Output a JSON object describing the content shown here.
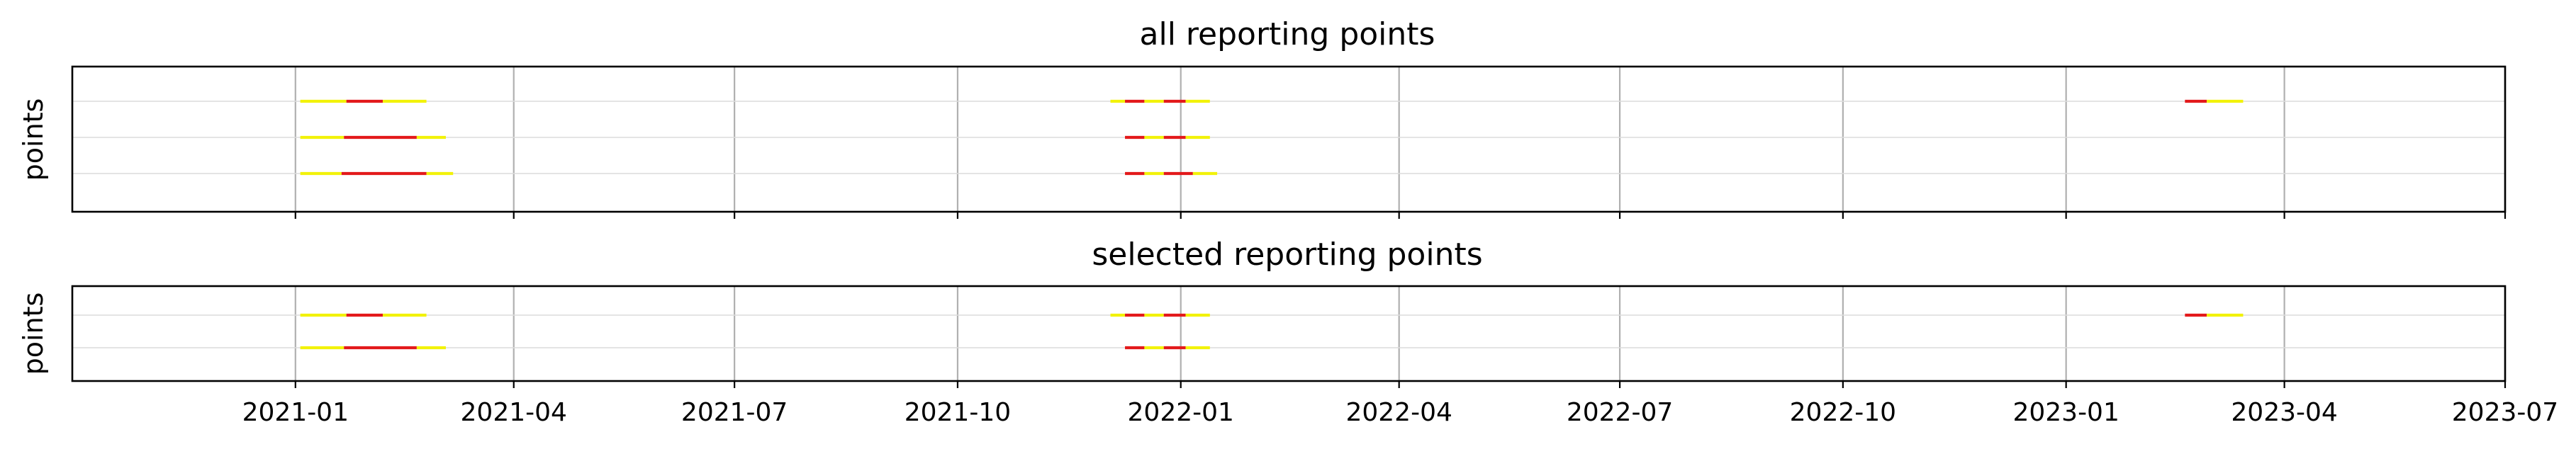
{
  "chart_data": [
    {
      "type": "timeline",
      "title": "all reporting points",
      "ylabel": "points",
      "xlim": [
        "2020-10-01",
        "2023-07-01"
      ],
      "xticks": [
        "2021-01",
        "2021-04",
        "2021-07",
        "2021-10",
        "2022-01",
        "2022-04",
        "2022-07",
        "2022-10",
        "2023-01",
        "2023-04",
        "2023-07"
      ],
      "grid": true,
      "rows": [
        {
          "segments": [
            {
              "start": "2021-01-03",
              "end": "2021-01-22",
              "color": "yellow"
            },
            {
              "start": "2021-01-22",
              "end": "2021-02-06",
              "color": "red"
            },
            {
              "start": "2021-02-06",
              "end": "2021-02-24",
              "color": "yellow"
            },
            {
              "start": "2021-12-03",
              "end": "2021-12-09",
              "color": "yellow"
            },
            {
              "start": "2021-12-09",
              "end": "2021-12-17",
              "color": "red"
            },
            {
              "start": "2021-12-17",
              "end": "2021-12-25",
              "color": "yellow"
            },
            {
              "start": "2021-12-25",
              "end": "2022-01-03",
              "color": "red"
            },
            {
              "start": "2022-01-03",
              "end": "2022-01-13",
              "color": "yellow"
            },
            {
              "start": "2023-02-19",
              "end": "2023-02-28",
              "color": "red"
            },
            {
              "start": "2023-02-28",
              "end": "2023-03-15",
              "color": "yellow"
            }
          ]
        },
        {
          "segments": [
            {
              "start": "2021-01-03",
              "end": "2021-01-21",
              "color": "yellow"
            },
            {
              "start": "2021-01-21",
              "end": "2021-02-20",
              "color": "red"
            },
            {
              "start": "2021-02-20",
              "end": "2021-03-04",
              "color": "yellow"
            },
            {
              "start": "2021-12-09",
              "end": "2021-12-17",
              "color": "red"
            },
            {
              "start": "2021-12-17",
              "end": "2021-12-25",
              "color": "yellow"
            },
            {
              "start": "2021-12-25",
              "end": "2022-01-03",
              "color": "red"
            },
            {
              "start": "2022-01-03",
              "end": "2022-01-13",
              "color": "yellow"
            }
          ]
        },
        {
          "segments": [
            {
              "start": "2021-01-03",
              "end": "2021-01-20",
              "color": "yellow"
            },
            {
              "start": "2021-01-20",
              "end": "2021-02-24",
              "color": "red"
            },
            {
              "start": "2021-02-24",
              "end": "2021-03-07",
              "color": "yellow"
            },
            {
              "start": "2021-12-09",
              "end": "2021-12-17",
              "color": "red"
            },
            {
              "start": "2021-12-17",
              "end": "2021-12-25",
              "color": "yellow"
            },
            {
              "start": "2021-12-25",
              "end": "2022-01-06",
              "color": "red"
            },
            {
              "start": "2022-01-06",
              "end": "2022-01-16",
              "color": "yellow"
            }
          ]
        }
      ]
    },
    {
      "type": "timeline",
      "title": "selected reporting points",
      "ylabel": "points",
      "xlim": [
        "2020-10-01",
        "2023-07-01"
      ],
      "xticks": [
        "2021-01",
        "2021-04",
        "2021-07",
        "2021-10",
        "2022-01",
        "2022-04",
        "2022-07",
        "2022-10",
        "2023-01",
        "2023-04",
        "2023-07"
      ],
      "grid": true,
      "rows": [
        {
          "segments": [
            {
              "start": "2021-01-03",
              "end": "2021-01-22",
              "color": "yellow"
            },
            {
              "start": "2021-01-22",
              "end": "2021-02-06",
              "color": "red"
            },
            {
              "start": "2021-02-06",
              "end": "2021-02-24",
              "color": "yellow"
            },
            {
              "start": "2021-12-03",
              "end": "2021-12-09",
              "color": "yellow"
            },
            {
              "start": "2021-12-09",
              "end": "2021-12-17",
              "color": "red"
            },
            {
              "start": "2021-12-17",
              "end": "2021-12-25",
              "color": "yellow"
            },
            {
              "start": "2021-12-25",
              "end": "2022-01-03",
              "color": "red"
            },
            {
              "start": "2022-01-03",
              "end": "2022-01-13",
              "color": "yellow"
            },
            {
              "start": "2023-02-19",
              "end": "2023-02-28",
              "color": "red"
            },
            {
              "start": "2023-02-28",
              "end": "2023-03-15",
              "color": "yellow"
            }
          ]
        },
        {
          "segments": [
            {
              "start": "2021-01-03",
              "end": "2021-01-21",
              "color": "yellow"
            },
            {
              "start": "2021-01-21",
              "end": "2021-02-20",
              "color": "red"
            },
            {
              "start": "2021-02-20",
              "end": "2021-03-04",
              "color": "yellow"
            },
            {
              "start": "2021-12-09",
              "end": "2021-12-17",
              "color": "red"
            },
            {
              "start": "2021-12-17",
              "end": "2021-12-25",
              "color": "yellow"
            },
            {
              "start": "2021-12-25",
              "end": "2022-01-03",
              "color": "red"
            },
            {
              "start": "2022-01-03",
              "end": "2022-01-13",
              "color": "yellow"
            }
          ]
        }
      ]
    }
  ],
  "colors": {
    "yellow": "#f2f20a",
    "red": "#e31a1c"
  }
}
